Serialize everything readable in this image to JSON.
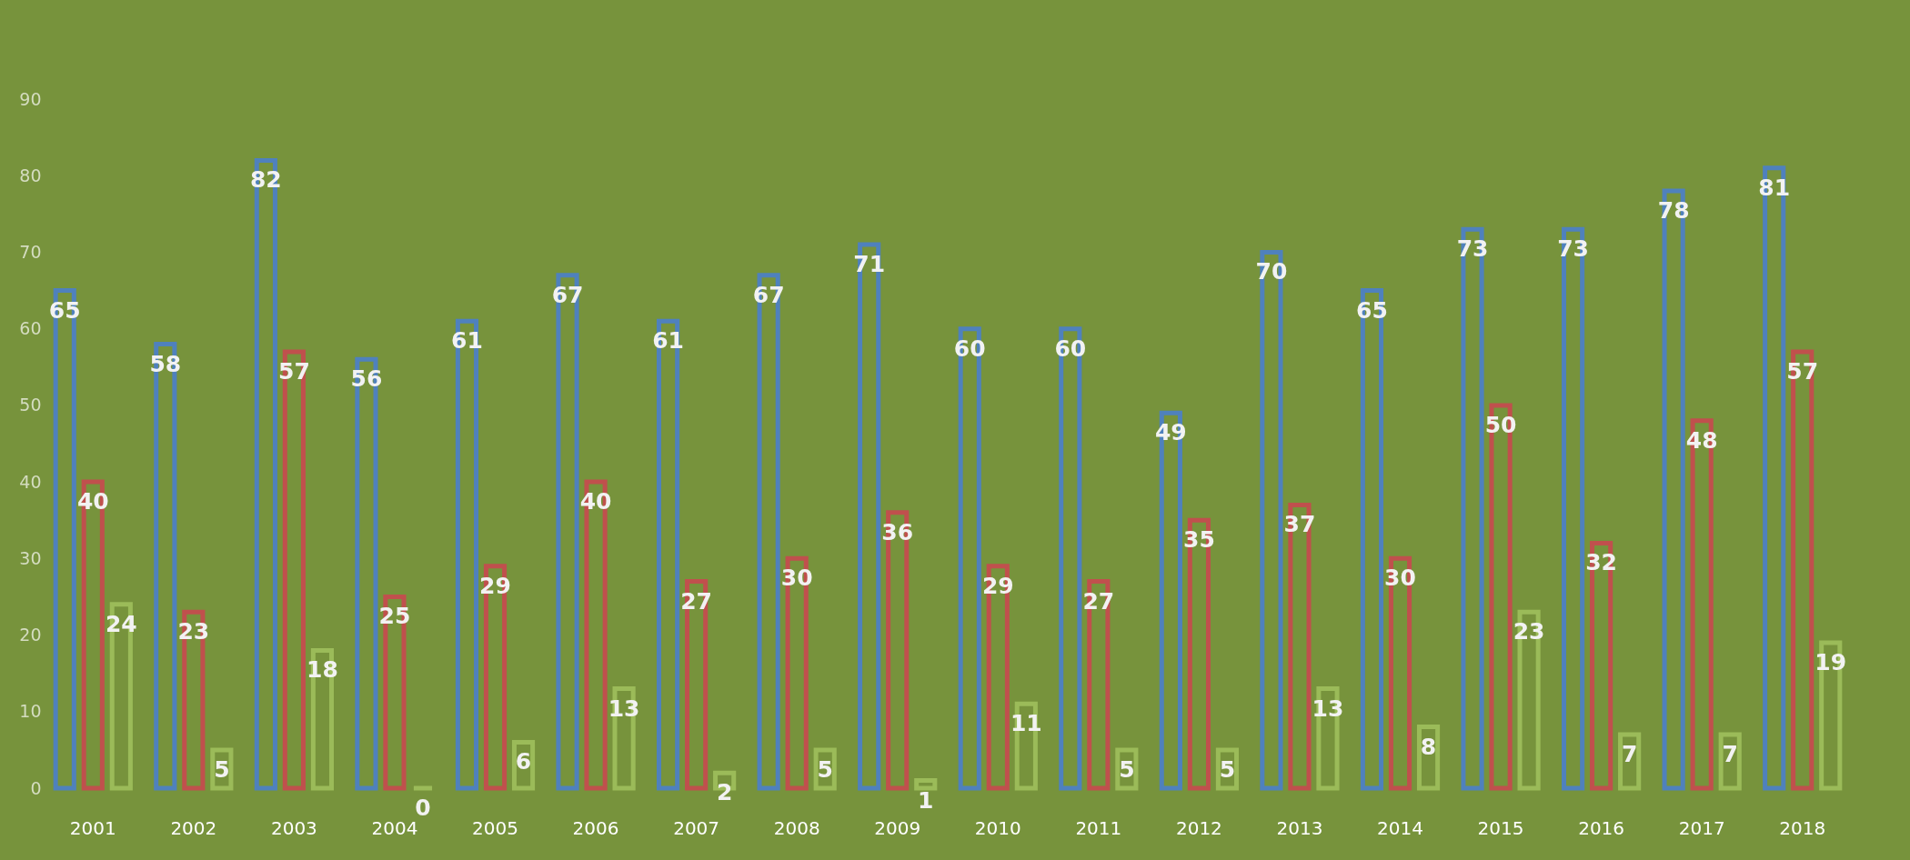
{
  "chart_data": {
    "type": "bar",
    "categories": [
      "2001",
      "2002",
      "2003",
      "2004",
      "2005",
      "2006",
      "2007",
      "2008",
      "2009",
      "2010",
      "2011",
      "2012",
      "2013",
      "2014",
      "2015",
      "2016",
      "2017",
      "2018"
    ],
    "series": [
      {
        "color": "#4f81bd",
        "values": [
          65,
          58,
          82,
          56,
          61,
          67,
          61,
          67,
          71,
          60,
          60,
          49,
          70,
          65,
          73,
          73,
          78,
          81
        ]
      },
      {
        "color": "#c0504d",
        "values": [
          40,
          23,
          57,
          25,
          29,
          40,
          27,
          30,
          36,
          29,
          27,
          35,
          37,
          30,
          50,
          32,
          48,
          57
        ]
      },
      {
        "color": "#9bbb59",
        "values": [
          24,
          5,
          18,
          0,
          6,
          13,
          2,
          5,
          1,
          11,
          5,
          5,
          13,
          8,
          23,
          7,
          7,
          19
        ]
      }
    ],
    "ylim": [
      0,
      90
    ],
    "yticks": [
      0,
      10,
      20,
      30,
      40,
      50,
      60,
      70,
      80,
      90
    ],
    "grid": false,
    "legend": false,
    "data_labels": true
  }
}
